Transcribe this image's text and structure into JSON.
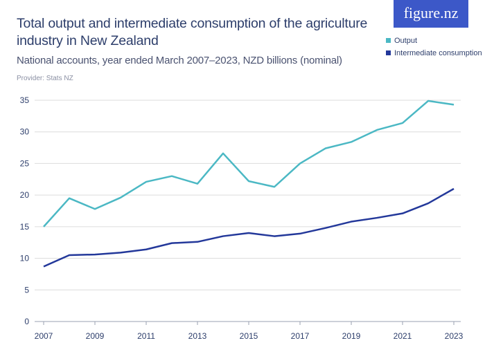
{
  "title": "Total output and intermediate consumption of the agriculture industry in New Zealand",
  "subtitle": "National accounts, year ended March 2007–2023, NZD billions (nominal)",
  "provider": "Provider: Stats NZ",
  "logo": "figure.nz",
  "chart_data": {
    "type": "line",
    "title": "Total output and intermediate consumption of the agriculture industry in New Zealand",
    "subtitle": "National accounts, year ended March 2007–2023, NZD billions (nominal)",
    "x": [
      2007,
      2008,
      2009,
      2010,
      2011,
      2012,
      2013,
      2014,
      2015,
      2016,
      2017,
      2018,
      2019,
      2020,
      2021,
      2022,
      2023
    ],
    "x_ticks": [
      "2007",
      "2009",
      "2011",
      "2013",
      "2015",
      "2017",
      "2019",
      "2021",
      "2023"
    ],
    "y_ticks": [
      "0",
      "5",
      "10",
      "15",
      "20",
      "25",
      "30",
      "35"
    ],
    "ylim": [
      0,
      35
    ],
    "grid": true,
    "legend": "top-right",
    "series": [
      {
        "name": "Output",
        "color": "#4bb8c4",
        "values": [
          15.0,
          19.5,
          17.8,
          19.6,
          22.1,
          23.0,
          21.8,
          26.6,
          22.2,
          21.3,
          25.0,
          27.4,
          28.4,
          30.3,
          31.4,
          34.9,
          34.3
        ]
      },
      {
        "name": "Intermediate consumption",
        "color": "#23389a",
        "values": [
          8.7,
          10.5,
          10.6,
          10.9,
          11.4,
          12.4,
          12.6,
          13.5,
          14.0,
          13.5,
          13.9,
          14.8,
          15.8,
          16.4,
          17.1,
          18.7,
          21.0
        ]
      }
    ]
  }
}
